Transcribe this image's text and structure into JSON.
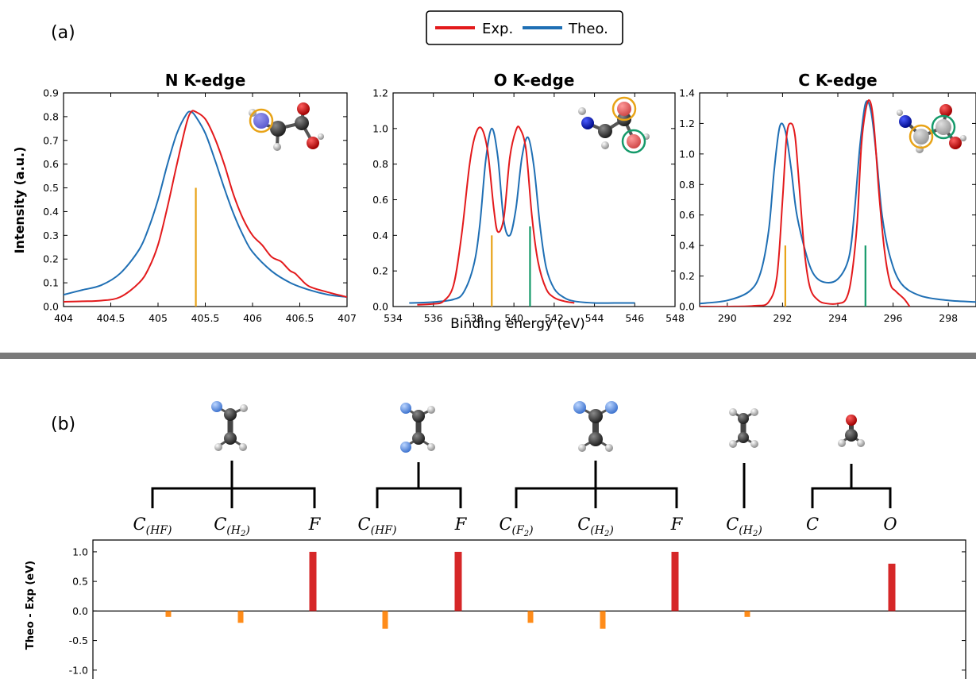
{
  "panel_labels": {
    "a": "(a)",
    "b": "(b)"
  },
  "legend": [
    {
      "label": "Exp.",
      "color": "#e31a1c"
    },
    {
      "label": "Theo.",
      "color": "#1f6fb4"
    }
  ],
  "colors": {
    "exp": "#e31a1c",
    "theo": "#1f6fb4",
    "orange": "#e8a317",
    "green": "#159a6a",
    "bar_pos": "#d62728",
    "bar_neg": "#ff8c1a"
  },
  "shared_xlabel": "Binding energy (eV)",
  "shared_ylabel": "Intensity (a.u.)",
  "chart_data": [
    {
      "type": "line",
      "title": "N K-edge",
      "xlim": [
        404,
        407
      ],
      "ylim": [
        0,
        0.9
      ],
      "xticks": [
        404,
        404.5,
        405,
        405.5,
        406,
        406.5,
        407
      ],
      "xtick_labels": [
        "404",
        "404.5",
        "405",
        "405.5",
        "406",
        "406.5",
        "407"
      ],
      "yticks": [
        0,
        0.1,
        0.2,
        0.3,
        0.4,
        0.5,
        0.6,
        0.7,
        0.8,
        0.9
      ],
      "ytick_labels": [
        "0.0",
        "0.1",
        "0.2",
        "0.3",
        "0.4",
        "0.5",
        "0.6",
        "0.7",
        "0.8",
        "0.9"
      ],
      "series": [
        {
          "name": "Exp.",
          "color": "#e31a1c",
          "x": [
            404,
            404.2,
            404.4,
            404.6,
            404.8,
            404.9,
            405,
            405.1,
            405.2,
            405.3,
            405.35,
            405.4,
            405.5,
            405.6,
            405.7,
            405.8,
            405.9,
            406,
            406.1,
            406.2,
            406.3,
            406.35,
            406.4,
            406.45,
            406.5,
            406.6,
            406.8,
            407
          ],
          "y": [
            0.02,
            0.022,
            0.025,
            0.04,
            0.1,
            0.16,
            0.26,
            0.42,
            0.6,
            0.77,
            0.82,
            0.82,
            0.79,
            0.71,
            0.6,
            0.47,
            0.37,
            0.3,
            0.26,
            0.21,
            0.19,
            0.17,
            0.15,
            0.14,
            0.12,
            0.085,
            0.06,
            0.04
          ]
        },
        {
          "name": "Theo.",
          "color": "#1f6fb4",
          "x": [
            404,
            404.2,
            404.4,
            404.6,
            404.8,
            404.9,
            405,
            405.1,
            405.2,
            405.3,
            405.35,
            405.4,
            405.5,
            405.6,
            405.7,
            405.8,
            405.9,
            406,
            406.2,
            406.4,
            406.6,
            406.8,
            407
          ],
          "y": [
            0.05,
            0.07,
            0.09,
            0.14,
            0.24,
            0.33,
            0.45,
            0.6,
            0.73,
            0.81,
            0.82,
            0.8,
            0.73,
            0.62,
            0.5,
            0.39,
            0.3,
            0.23,
            0.15,
            0.1,
            0.07,
            0.05,
            0.04
          ]
        }
      ],
      "sticks": [
        {
          "x": 405.4,
          "height": 0.5,
          "color": "#e8a317"
        }
      ]
    },
    {
      "type": "line",
      "title": "O K-edge",
      "xlim": [
        534,
        548
      ],
      "ylim": [
        0,
        1.2
      ],
      "xticks": [
        534,
        536,
        538,
        540,
        542,
        544,
        546,
        548
      ],
      "xtick_labels": [
        "534",
        "536",
        "538",
        "540",
        "542",
        "544",
        "546",
        "548"
      ],
      "yticks": [
        0,
        0.2,
        0.4,
        0.6,
        0.8,
        1.0,
        1.2
      ],
      "ytick_labels": [
        "0.0",
        "0.2",
        "0.4",
        "0.6",
        "0.8",
        "1.0",
        "1.2"
      ],
      "series": [
        {
          "name": "Exp.",
          "color": "#e31a1c",
          "x": [
            535.2,
            536,
            536.5,
            537,
            537.4,
            537.8,
            538.1,
            538.4,
            538.7,
            539,
            539.2,
            539.5,
            539.8,
            540.1,
            540.3,
            540.6,
            540.9,
            541.2,
            541.6,
            542,
            542.5,
            543
          ],
          "y": [
            0.01,
            0.015,
            0.03,
            0.12,
            0.4,
            0.8,
            0.97,
            1.0,
            0.87,
            0.55,
            0.42,
            0.5,
            0.84,
            0.99,
            1.0,
            0.88,
            0.5,
            0.25,
            0.1,
            0.05,
            0.03,
            0.02
          ]
        },
        {
          "name": "Theo.",
          "color": "#1f6fb4",
          "x": [
            534.8,
            536,
            537,
            537.5,
            538,
            538.3,
            538.6,
            538.9,
            539.2,
            539.5,
            539.8,
            540.1,
            540.4,
            540.7,
            541,
            541.3,
            541.6,
            542,
            542.5,
            543,
            544,
            545,
            546
          ],
          "y": [
            0.02,
            0.025,
            0.04,
            0.08,
            0.23,
            0.45,
            0.82,
            1.0,
            0.84,
            0.48,
            0.4,
            0.55,
            0.84,
            0.95,
            0.78,
            0.45,
            0.22,
            0.1,
            0.05,
            0.03,
            0.02,
            0.02,
            0.02
          ]
        }
      ],
      "sticks": [
        {
          "x": 538.9,
          "height": 0.4,
          "color": "#e8a317"
        },
        {
          "x": 540.8,
          "height": 0.45,
          "color": "#159a6a"
        }
      ]
    },
    {
      "type": "line",
      "title": "C K-edge",
      "xlim": [
        289,
        299
      ],
      "ylim": [
        0,
        1.4
      ],
      "xticks": [
        290,
        292,
        294,
        296,
        298
      ],
      "xtick_labels": [
        "290",
        "292",
        "294",
        "296",
        "298"
      ],
      "yticks": [
        0,
        0.2,
        0.4,
        0.6,
        0.8,
        1.0,
        1.2,
        1.4
      ],
      "ytick_labels": [
        "0.0",
        "0.2",
        "0.4",
        "0.6",
        "0.8",
        "1.0",
        "1.2",
        "1.4"
      ],
      "series": [
        {
          "name": "Exp.",
          "color": "#e31a1c",
          "x": [
            289,
            290,
            291,
            291.5,
            291.8,
            292,
            292.15,
            292.3,
            292.45,
            292.6,
            292.8,
            293,
            293.3,
            293.6,
            294,
            294.3,
            294.5,
            294.7,
            294.85,
            295,
            295.15,
            295.3,
            295.5,
            295.7,
            295.9,
            296.1,
            296.4,
            296.6
          ],
          "y": [
            0,
            0,
            0.005,
            0.03,
            0.2,
            0.7,
            1.12,
            1.2,
            1.12,
            0.8,
            0.35,
            0.12,
            0.04,
            0.02,
            0.02,
            0.05,
            0.2,
            0.55,
            1.05,
            1.28,
            1.35,
            1.2,
            0.72,
            0.35,
            0.15,
            0.1,
            0.05,
            0.0
          ]
        },
        {
          "name": "Theo.",
          "color": "#1f6fb4",
          "x": [
            289,
            290,
            290.8,
            291.2,
            291.5,
            291.7,
            291.9,
            292.1,
            292.3,
            292.5,
            292.8,
            293.1,
            293.5,
            294,
            294.4,
            294.6,
            294.8,
            295,
            295.2,
            295.4,
            295.6,
            295.9,
            296.3,
            297,
            298,
            299
          ],
          "y": [
            0.02,
            0.04,
            0.1,
            0.22,
            0.5,
            0.9,
            1.18,
            1.15,
            0.92,
            0.62,
            0.38,
            0.22,
            0.16,
            0.18,
            0.32,
            0.62,
            1.05,
            1.33,
            1.28,
            0.98,
            0.6,
            0.32,
            0.15,
            0.07,
            0.04,
            0.03
          ]
        }
      ],
      "sticks": [
        {
          "x": 292.1,
          "height": 0.4,
          "color": "#e8a317"
        },
        {
          "x": 295.0,
          "height": 0.4,
          "color": "#159a6a"
        }
      ]
    },
    {
      "type": "bar",
      "ylabel": "Theo - Exp (eV)",
      "ylim": [
        -1.15,
        1.2
      ],
      "yticks": [
        -1.0,
        -0.5,
        0.0,
        0.5,
        1.0
      ],
      "ytick_labels": [
        "-1.0",
        "-0.5",
        "0.0",
        "0.5",
        "1.0"
      ],
      "groups": [
        {
          "categories": [
            "HF",
            "H2",
            "F"
          ]
        },
        {
          "categories": [
            "HF",
            "F"
          ]
        },
        {
          "categories": [
            "F2",
            "H2",
            "F"
          ]
        },
        {
          "categories": [
            "H2"
          ]
        },
        {
          "categories": [
            "C",
            "O"
          ]
        }
      ],
      "categories": [
        "C(HF)",
        "C(H2)",
        "F",
        "C(HF)",
        "F",
        "C(F2)",
        "C(H2)",
        "F",
        "C(H2)",
        "C",
        "O"
      ],
      "values": [
        -0.1,
        -0.2,
        1.0,
        -0.3,
        1.0,
        -0.2,
        -0.3,
        1.0,
        -0.1,
        0.0,
        0.8
      ]
    }
  ]
}
